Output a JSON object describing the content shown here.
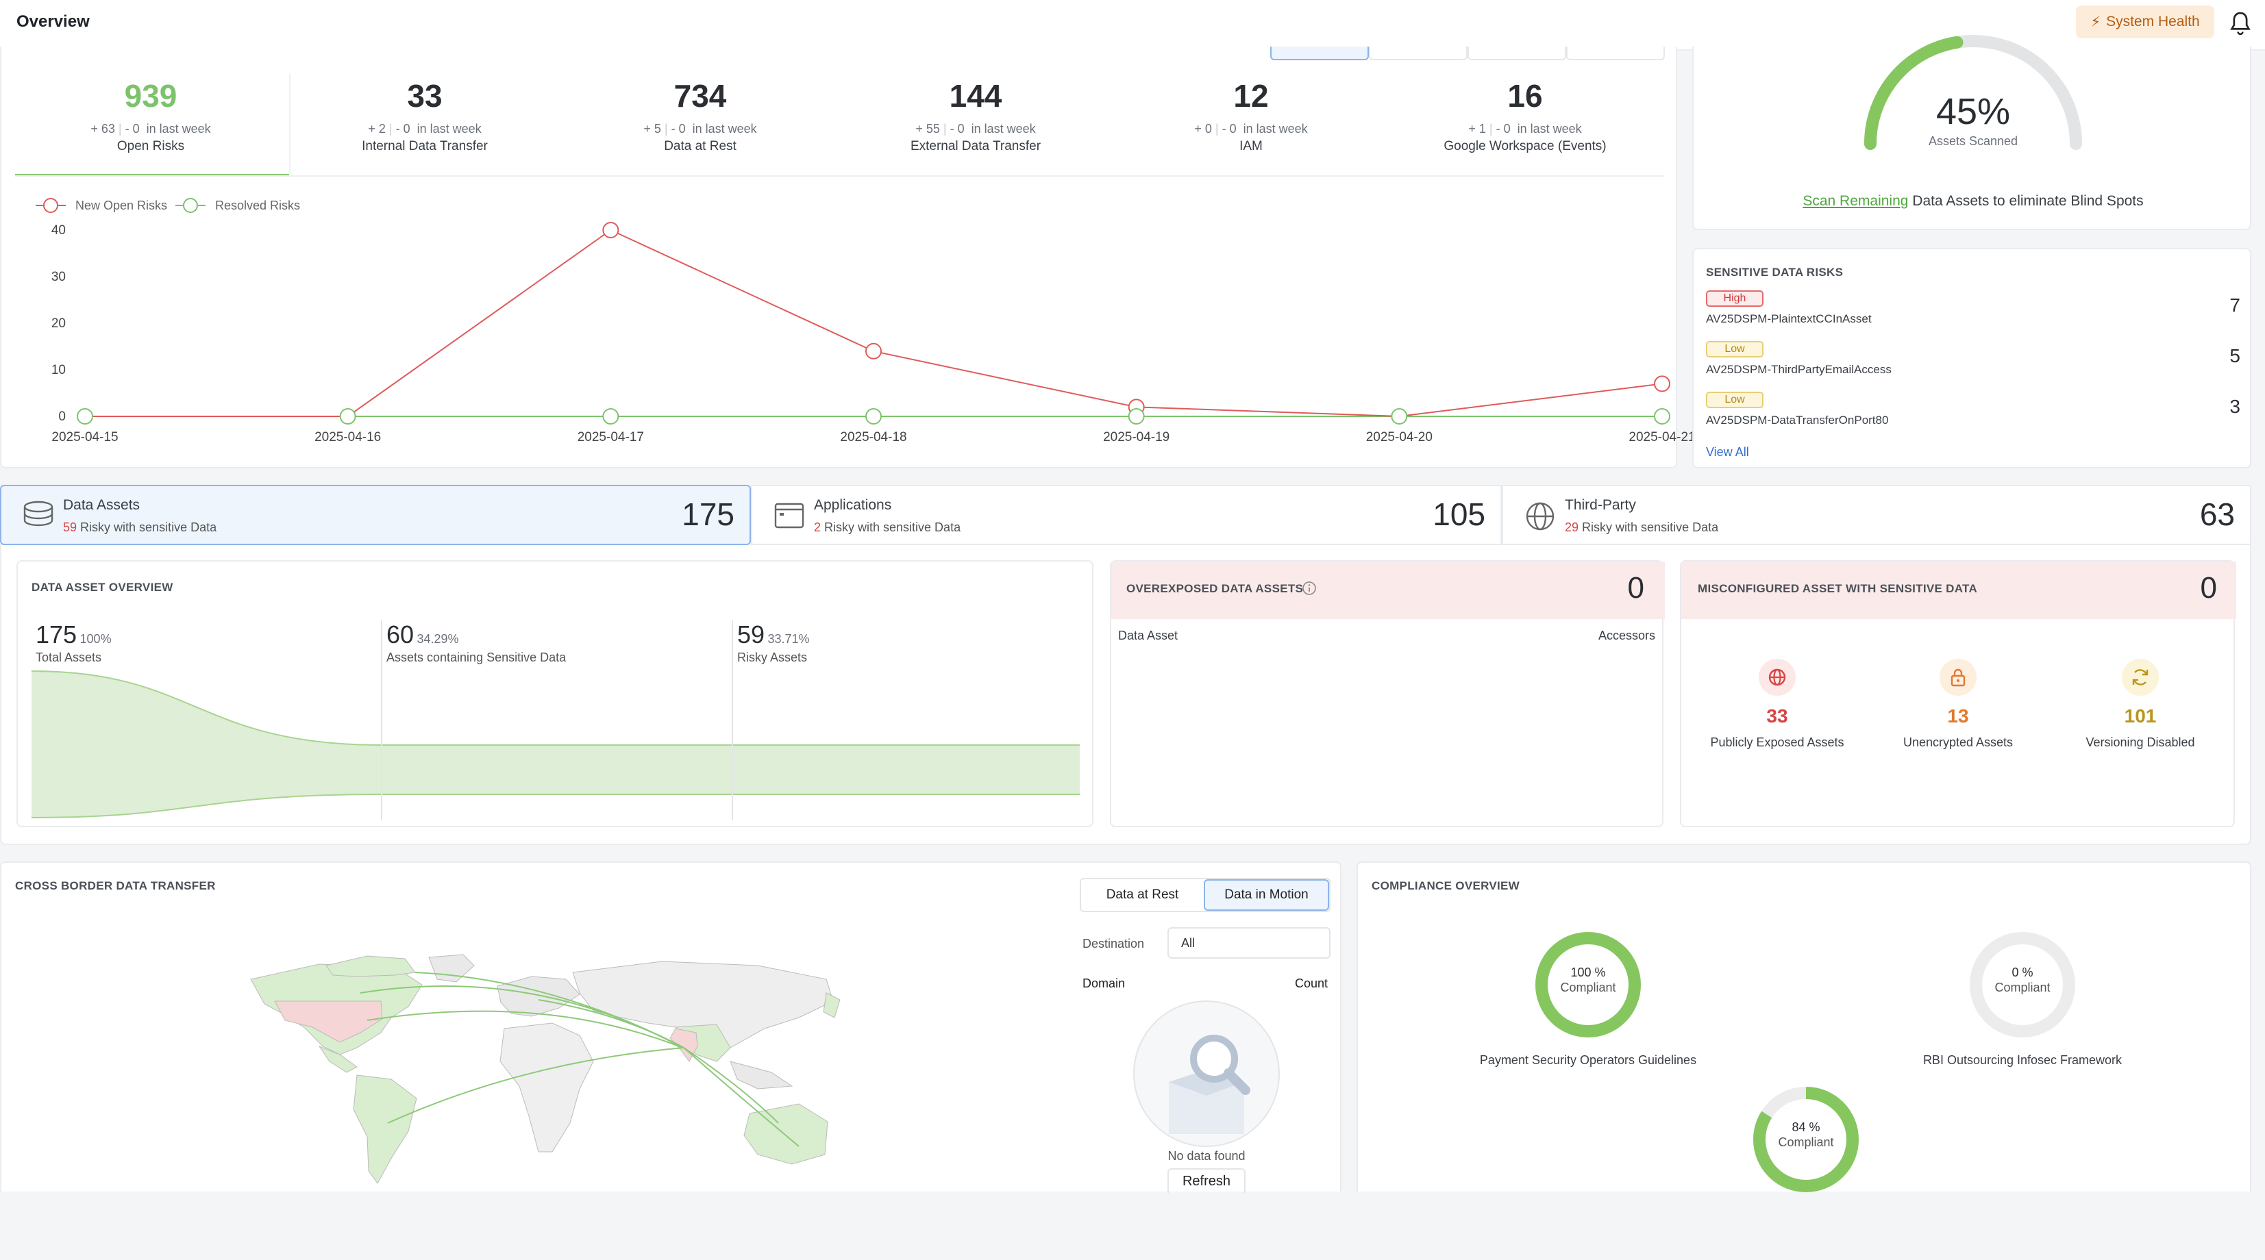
{
  "header": {
    "title": "Overview",
    "system_health": "System Health"
  },
  "kpis": [
    {
      "value": "939",
      "plus": "+ 63",
      "minus": "- 0",
      "period": "in last week",
      "label": "Open Risks"
    },
    {
      "value": "33",
      "plus": "+ 2",
      "minus": "- 0",
      "period": "in last week",
      "label": "Internal Data Transfer"
    },
    {
      "value": "734",
      "plus": "+ 5",
      "minus": "- 0",
      "period": "in last week",
      "label": "Data at Rest"
    },
    {
      "value": "144",
      "plus": "+ 55",
      "minus": "- 0",
      "period": "in last week",
      "label": "External Data Transfer"
    },
    {
      "value": "12",
      "plus": "+ 0",
      "minus": "- 0",
      "period": "in last week",
      "label": "IAM"
    },
    {
      "value": "16",
      "plus": "+ 1",
      "minus": "- 0",
      "period": "in last week",
      "label": "Google Workspace (Events)"
    }
  ],
  "chart_data": {
    "type": "line",
    "x": [
      "2025-04-15",
      "2025-04-16",
      "2025-04-17",
      "2025-04-18",
      "2025-04-19",
      "2025-04-20",
      "2025-04-21"
    ],
    "series": [
      {
        "name": "New Open Risks",
        "values": [
          0,
          0,
          40,
          14,
          2,
          0,
          7
        ],
        "color": "#e05a5a"
      },
      {
        "name": "Resolved Risks",
        "values": [
          0,
          0,
          0,
          0,
          0,
          0,
          0
        ],
        "color": "#7cc36b"
      }
    ],
    "yticks": [
      "0",
      "10",
      "20",
      "30",
      "40"
    ],
    "ylim": [
      0,
      40
    ],
    "legend": "top-left"
  },
  "scan": {
    "percent": "45%",
    "label": "Assets Scanned",
    "link": "Scan Remaining",
    "text": " Data Assets to eliminate Blind Spots",
    "fraction": 0.45
  },
  "sensitive": {
    "title": "SENSITIVE DATA RISKS",
    "view_all": "View All",
    "items": [
      {
        "severity": "High",
        "name": "AV25DSPM-PlaintextCCInAsset",
        "count": "7"
      },
      {
        "severity": "Low",
        "name": "AV25DSPM-ThirdPartyEmailAccess",
        "count": "5"
      },
      {
        "severity": "Low",
        "name": "AV25DSPM-DataTransferOnPort80",
        "count": "3"
      }
    ]
  },
  "tabs": [
    {
      "name": "Data Assets",
      "risky": "59",
      "sub": " Risky with sensitive Data",
      "count": "175"
    },
    {
      "name": "Applications",
      "risky": "2",
      "sub": " Risky with sensitive Data",
      "count": "105"
    },
    {
      "name": "Third-Party",
      "risky": "29",
      "sub": " Risky with sensitive Data",
      "count": "63"
    }
  ],
  "overview": {
    "title": "DATA ASSET OVERVIEW",
    "stages": [
      {
        "value": "175",
        "pct": "100%",
        "label": "Total Assets"
      },
      {
        "value": "60",
        "pct": "34.29%",
        "label": "Assets containing Sensitive Data"
      },
      {
        "value": "59",
        "pct": "33.71%",
        "label": "Risky Assets"
      }
    ]
  },
  "overexposed": {
    "title": "OVEREXPOSED DATA ASSETS",
    "count": "0",
    "col1": "Data Asset",
    "col2": "Accessors"
  },
  "misconfig": {
    "title": "MISCONFIGURED ASSET WITH SENSITIVE DATA",
    "count": "0",
    "items": [
      {
        "value": "33",
        "label": "Publicly Exposed Assets",
        "color": "#d64545"
      },
      {
        "value": "13",
        "label": "Unencrypted Assets",
        "color": "#e07a2f"
      },
      {
        "value": "101",
        "label": "Versioning Disabled",
        "color": "#b8961a"
      }
    ]
  },
  "cross": {
    "title": "CROSS BORDER DATA TRANSFER",
    "btn_rest": "Data at Rest",
    "btn_motion": "Data in Motion",
    "dest_label": "Destination",
    "dest_value": "All",
    "col_domain": "Domain",
    "col_count": "Count",
    "empty": "No data found",
    "refresh": "Refresh"
  },
  "compliance": {
    "title": "COMPLIANCE OVERVIEW",
    "compliant": "Compliant",
    "items": [
      {
        "pct": "100 %",
        "value": 100,
        "name": "Payment Security Operators Guidelines"
      },
      {
        "pct": "0 %",
        "value": 0,
        "name": "RBI Outsourcing Infosec Framework"
      },
      {
        "pct": "84 %",
        "value": 84,
        "name": ""
      }
    ]
  }
}
